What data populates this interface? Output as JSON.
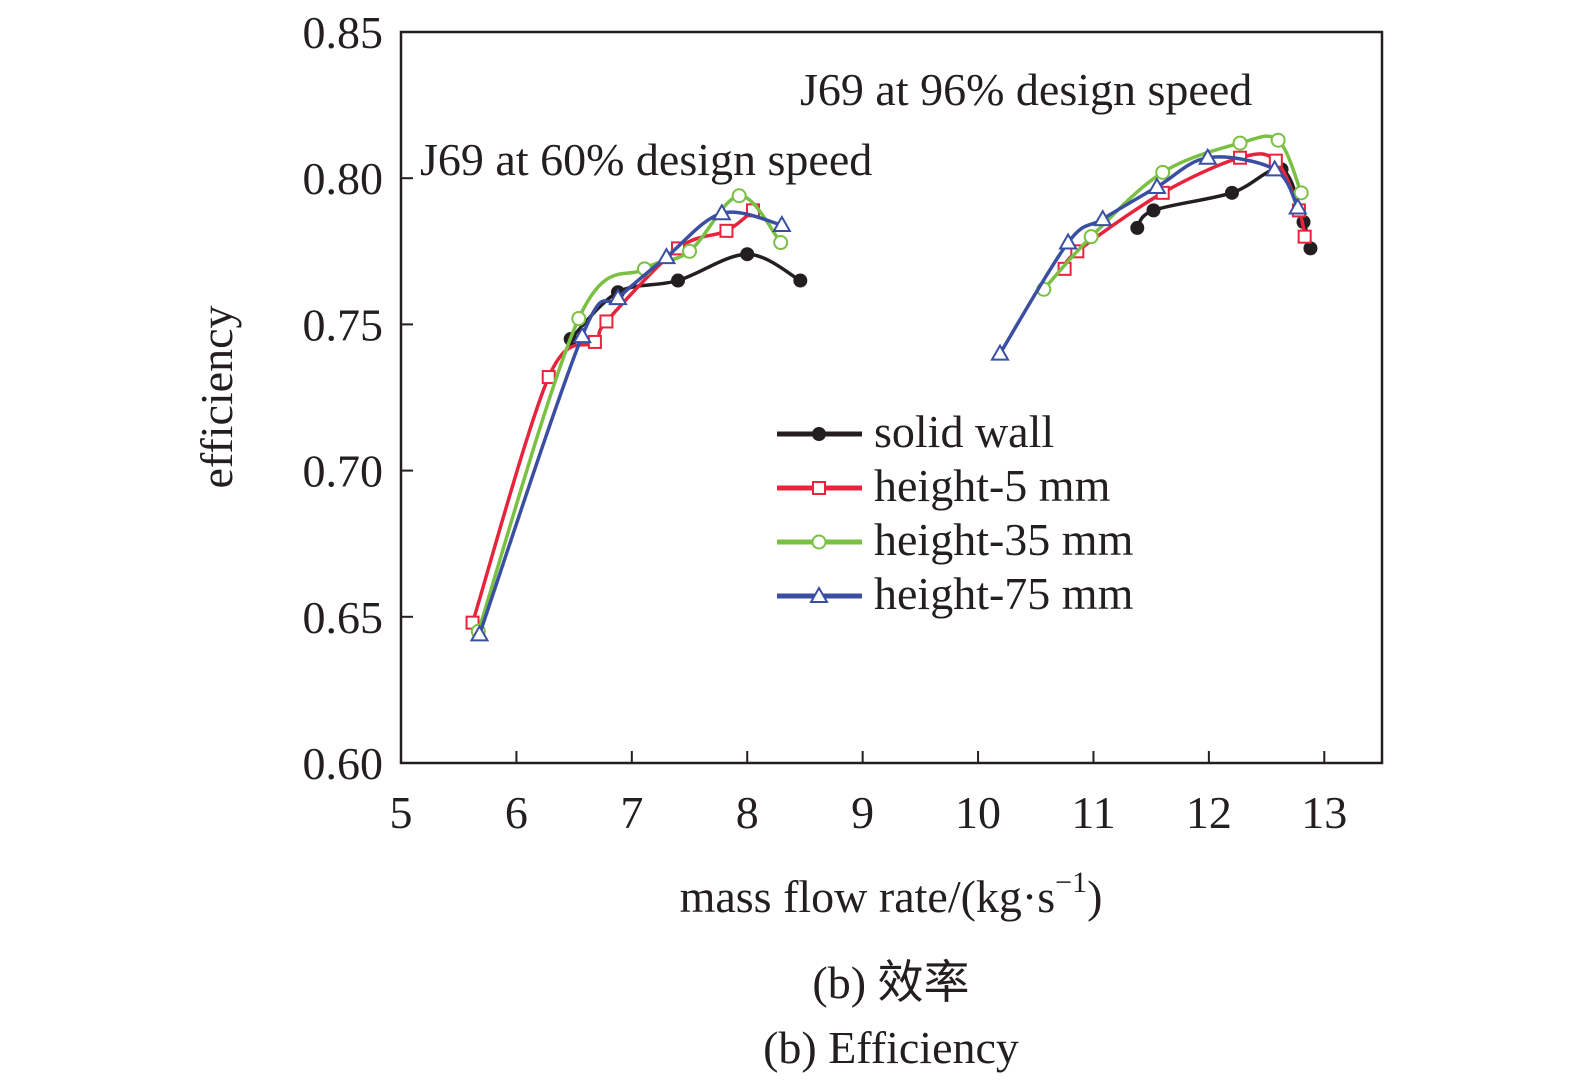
{
  "chart_data": {
    "type": "line",
    "xlabel_main": "mass flow rate/(kg·s",
    "xlabel_sup": "−1",
    "xlabel_close": ")",
    "ylabel": "efficiency",
    "xlim": [
      5,
      13.5
    ],
    "ylim": [
      0.6,
      0.85
    ],
    "xticks": [
      5,
      6,
      7,
      8,
      9,
      10,
      11,
      12,
      13
    ],
    "xtick_labels": [
      "5",
      "6",
      "7",
      "8",
      "9",
      "10",
      "11",
      "12",
      "13"
    ],
    "yticks": [
      0.6,
      0.65,
      0.7,
      0.75,
      0.8,
      0.85
    ],
    "ytick_labels": [
      "0.60",
      "0.65",
      "0.70",
      "0.75",
      "0.80",
      "0.85"
    ],
    "grid": false,
    "legend_position": "center-right",
    "annotations": [
      {
        "text": "J69 at 96% design speed"
      },
      {
        "text": "J69 at 60% design speed"
      }
    ],
    "series": [
      {
        "name": "solid wall",
        "color": "#231f20",
        "marker": "filled-circle",
        "groups": [
          [
            [
              6.47,
              0.745
            ],
            [
              6.88,
              0.761
            ],
            [
              7.4,
              0.765
            ],
            [
              8.0,
              0.774
            ],
            [
              8.46,
              0.765
            ]
          ],
          [
            [
              11.38,
              0.783
            ],
            [
              11.52,
              0.789
            ],
            [
              12.2,
              0.795
            ],
            [
              12.63,
              0.803
            ],
            [
              12.82,
              0.785
            ],
            [
              12.88,
              0.776
            ]
          ]
        ]
      },
      {
        "name": "height-5 mm",
        "color": "#e8243c",
        "marker": "open-square",
        "groups": [
          [
            [
              5.62,
              0.648
            ],
            [
              6.28,
              0.732
            ],
            [
              6.68,
              0.744
            ],
            [
              6.78,
              0.751
            ],
            [
              7.4,
              0.776
            ],
            [
              7.82,
              0.782
            ],
            [
              8.05,
              0.789
            ]
          ],
          [
            [
              10.75,
              0.769
            ],
            [
              10.86,
              0.775
            ],
            [
              11.6,
              0.795
            ],
            [
              12.27,
              0.807
            ],
            [
              12.58,
              0.806
            ],
            [
              12.78,
              0.789
            ],
            [
              12.83,
              0.78
            ]
          ]
        ]
      },
      {
        "name": "height-35 mm",
        "color": "#7ac143",
        "marker": "open-circle",
        "groups": [
          [
            [
              5.67,
              0.645
            ],
            [
              6.54,
              0.752
            ],
            [
              7.11,
              0.769
            ],
            [
              7.5,
              0.775
            ],
            [
              7.93,
              0.794
            ],
            [
              8.29,
              0.778
            ]
          ],
          [
            [
              10.57,
              0.762
            ],
            [
              10.98,
              0.78
            ],
            [
              11.6,
              0.802
            ],
            [
              12.27,
              0.812
            ],
            [
              12.6,
              0.813
            ],
            [
              12.8,
              0.795
            ]
          ]
        ]
      },
      {
        "name": "height-75 mm",
        "color": "#3a4fa2",
        "marker": "open-triangle",
        "groups": [
          [
            [
              5.68,
              0.644
            ],
            [
              6.57,
              0.746
            ],
            [
              6.88,
              0.759
            ],
            [
              7.3,
              0.773
            ],
            [
              7.78,
              0.788
            ],
            [
              8.3,
              0.784
            ]
          ],
          [
            [
              10.19,
              0.74
            ],
            [
              10.78,
              0.778
            ],
            [
              11.08,
              0.786
            ],
            [
              11.55,
              0.797
            ],
            [
              11.99,
              0.807
            ],
            [
              12.57,
              0.803
            ],
            [
              12.77,
              0.79
            ]
          ]
        ]
      }
    ]
  },
  "caption": {
    "line1": "(b) 效率",
    "line2": "(b) Efficiency"
  }
}
